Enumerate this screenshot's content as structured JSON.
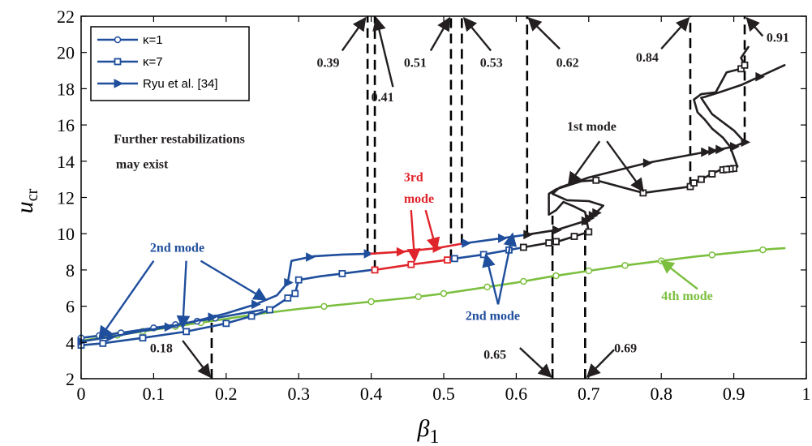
{
  "chart_data": {
    "type": "line",
    "xlabel": "β",
    "xlabel_sub": "1",
    "ylabel": "u",
    "ylabel_sub": "cr",
    "xlim": [
      0,
      1
    ],
    "ylim": [
      2,
      22
    ],
    "xticks": [
      0,
      0.1,
      0.2,
      0.3,
      0.4,
      0.5,
      0.6,
      0.7,
      0.8,
      0.9,
      1
    ],
    "xtick_labels": [
      "0",
      "0.1",
      "0.2",
      "0.3",
      "0.4",
      "0.5",
      "0.6",
      "0.7",
      "0.8",
      "0.9",
      "1"
    ],
    "yticks": [
      2,
      4,
      6,
      8,
      10,
      12,
      14,
      16,
      18,
      20,
      22
    ],
    "ytick_labels": [
      "2",
      "4",
      "6",
      "8",
      "10",
      "12",
      "14",
      "16",
      "18",
      "20",
      "22"
    ],
    "grid": false,
    "legend_position": "top-left",
    "colors": {
      "blue": "#1f4e9c",
      "red": "#e0242b",
      "black": "#231f20",
      "green": "#7cbf3f"
    },
    "legend": [
      {
        "label": "κ=1",
        "marker": "circle"
      },
      {
        "label": "κ=7",
        "marker": "square"
      },
      {
        "label": "Ryu et al. [34]",
        "marker": "triangle"
      }
    ],
    "series": [
      {
        "group": "κ=1",
        "color": "green",
        "marker": "circle",
        "x": [
          0.0,
          0.05,
          0.1,
          0.15,
          0.2,
          0.25,
          0.3,
          0.35,
          0.4,
          0.45,
          0.5,
          0.55,
          0.6,
          0.65,
          0.7,
          0.75,
          0.8,
          0.85,
          0.9,
          0.95,
          0.97
        ],
        "y": [
          4.1,
          4.4,
          4.7,
          5.0,
          5.3,
          5.6,
          5.85,
          6.05,
          6.25,
          6.45,
          6.7,
          7.0,
          7.3,
          7.65,
          7.95,
          8.25,
          8.5,
          8.75,
          8.95,
          9.15,
          9.2
        ],
        "marker_x": [
          0.0,
          0.05,
          0.085,
          0.13,
          0.165,
          0.335,
          0.4,
          0.465,
          0.5,
          0.56,
          0.61,
          0.655,
          0.7,
          0.75,
          0.8,
          0.87,
          0.94
        ]
      },
      {
        "group": "κ=1",
        "color": "blue",
        "marker": "circle",
        "x": [
          0.0,
          0.05,
          0.1,
          0.15,
          0.2,
          0.25
        ],
        "y": [
          4.25,
          4.5,
          4.8,
          5.1,
          5.45,
          5.8
        ],
        "marker_x": [
          0.0,
          0.025,
          0.055,
          0.1,
          0.13,
          0.16,
          0.185
        ]
      },
      {
        "group": "κ=7",
        "color": "blue",
        "marker": "square",
        "x": [
          0.0,
          0.03,
          0.085,
          0.145,
          0.2,
          0.235,
          0.26,
          0.285,
          0.295,
          0.3,
          0.33,
          0.36,
          0.4
        ],
        "y": [
          3.85,
          3.95,
          4.25,
          4.6,
          5.05,
          5.45,
          5.8,
          6.45,
          6.7,
          7.45,
          7.65,
          7.8,
          8.0
        ],
        "marker_x": [
          0.0,
          0.03,
          0.085,
          0.145,
          0.2,
          0.235,
          0.26,
          0.285,
          0.295,
          0.3,
          0.36
        ]
      },
      {
        "group": "κ=7",
        "color": "red",
        "marker": "square",
        "x": [
          0.405,
          0.455,
          0.505,
          0.51
        ],
        "y": [
          8.0,
          8.3,
          8.55,
          8.6
        ],
        "marker_x": [
          0.405,
          0.455,
          0.505
        ]
      },
      {
        "group": "κ=7",
        "color": "blue",
        "marker": "square",
        "x": [
          0.51,
          0.555,
          0.59,
          0.61
        ],
        "y": [
          8.6,
          8.85,
          9.1,
          9.25
        ],
        "marker_x": [
          0.515,
          0.555,
          0.59
        ]
      },
      {
        "group": "κ=7",
        "color": "black",
        "marker": "square",
        "x": [
          0.61,
          0.66,
          0.7,
          0.695,
          0.68,
          0.665,
          0.655,
          0.645,
          0.645,
          0.655,
          0.69,
          0.71,
          0.775,
          0.84,
          0.84,
          0.86,
          0.88,
          0.9,
          0.905,
          0.895,
          0.885,
          0.87,
          0.86,
          0.85,
          0.845,
          0.855,
          0.875,
          0.89,
          0.91,
          0.915,
          0.91,
          0.915,
          0.92
        ],
        "y": [
          9.25,
          9.6,
          10.1,
          11.2,
          11.5,
          11.75,
          11.3,
          11.05,
          12.2,
          12.45,
          12.9,
          12.95,
          12.25,
          12.6,
          12.7,
          13.1,
          13.5,
          13.6,
          13.7,
          14.8,
          15.3,
          15.8,
          16.3,
          16.7,
          17.4,
          17.7,
          17.8,
          18.9,
          19.1,
          19.3,
          19.7,
          20.0,
          20.3
        ],
        "marker_x": [
          0.61,
          0.655,
          0.7,
          0.68,
          0.645,
          0.655,
          0.71,
          0.775,
          0.84,
          0.855,
          0.87,
          0.9,
          0.895,
          0.885,
          0.87,
          0.855,
          0.845,
          0.89,
          0.91,
          0.915
        ]
      },
      {
        "group": "Ryu et al. [34]",
        "color": "blue",
        "marker": "triangle",
        "x": [
          0.0,
          0.04,
          0.08,
          0.12,
          0.16,
          0.2,
          0.24,
          0.27,
          0.285,
          0.29,
          0.32,
          0.36,
          0.4
        ],
        "y": [
          4.05,
          4.3,
          4.6,
          4.85,
          5.2,
          5.6,
          6.1,
          6.6,
          7.3,
          8.5,
          8.75,
          8.85,
          8.9
        ],
        "marker_x": [
          0.0,
          0.04,
          0.12,
          0.18,
          0.24,
          0.285,
          0.315,
          0.395
        ]
      },
      {
        "group": "Ryu et al. [34]",
        "color": "red",
        "marker": "triangle",
        "x": [
          0.4,
          0.44,
          0.49,
          0.525
        ],
        "y": [
          8.9,
          9.0,
          9.2,
          9.45
        ],
        "marker_x": [
          0.44,
          0.49
        ]
      },
      {
        "group": "Ryu et al. [34]",
        "color": "blue",
        "marker": "triangle",
        "x": [
          0.525,
          0.58,
          0.615
        ],
        "y": [
          9.45,
          9.75,
          9.95
        ],
        "marker_x": [
          0.53,
          0.58
        ]
      },
      {
        "group": "Ryu et al. [34]",
        "color": "black",
        "marker": "triangle",
        "x": [
          0.615,
          0.655,
          0.695,
          0.71,
          0.72,
          0.7,
          0.67,
          0.65,
          0.66,
          0.7,
          0.78,
          0.86,
          0.9,
          0.915,
          0.9,
          0.87,
          0.86,
          0.855,
          0.86,
          0.88,
          0.91,
          0.97
        ],
        "y": [
          9.95,
          10.2,
          10.7,
          11.15,
          11.55,
          11.8,
          11.85,
          12.2,
          12.55,
          13.1,
          13.9,
          14.5,
          14.8,
          15.05,
          15.7,
          16.6,
          17.2,
          17.5,
          17.55,
          17.8,
          18.2,
          19.3
        ],
        "marker_x": [
          0.615,
          0.655,
          0.695,
          0.71,
          0.7,
          0.655,
          0.705,
          0.78,
          0.86,
          0.915,
          0.9,
          0.87,
          0.86,
          0.88,
          0.9,
          0.935
        ]
      }
    ],
    "dashed_lines": [
      {
        "x": 0.18,
        "y0": 2,
        "y1": 5.25
      },
      {
        "x": 0.395,
        "y0": 8.9,
        "y1": 22
      },
      {
        "x": 0.405,
        "y0": 8.0,
        "y1": 22
      },
      {
        "x": 0.51,
        "y0": 8.6,
        "y1": 22
      },
      {
        "x": 0.525,
        "y0": 9.45,
        "y1": 22
      },
      {
        "x": 0.615,
        "y0": 9.95,
        "y1": 22
      },
      {
        "x": 0.65,
        "y0": 2,
        "y1": 11.0
      },
      {
        "x": 0.695,
        "y0": 2,
        "y1": 10.6
      },
      {
        "x": 0.84,
        "y0": 12.6,
        "y1": 22
      },
      {
        "x": 0.915,
        "y0": 15.05,
        "y1": 22
      }
    ],
    "annotations": [
      {
        "text": "0.39",
        "x": 0.325,
        "y": 19.2,
        "color": "black",
        "arrows": [
          [
            0.36,
            20.1,
            0.392,
            21.9
          ]
        ]
      },
      {
        "text": "0.41",
        "x": 0.4,
        "y": 17.3,
        "color": "black",
        "arrows": [
          [
            0.43,
            18.1,
            0.407,
            21.9
          ]
        ]
      },
      {
        "text": "0.51",
        "x": 0.445,
        "y": 19.2,
        "color": "black",
        "arrows": [
          [
            0.482,
            20.1,
            0.508,
            21.9
          ]
        ]
      },
      {
        "text": "0.53",
        "x": 0.55,
        "y": 19.2,
        "color": "black",
        "arrows": [
          [
            0.565,
            20.1,
            0.528,
            21.9
          ]
        ]
      },
      {
        "text": "0.62",
        "x": 0.655,
        "y": 19.2,
        "color": "black",
        "arrows": [
          [
            0.66,
            20.2,
            0.617,
            21.9
          ]
        ]
      },
      {
        "text": "0.84",
        "x": 0.765,
        "y": 19.5,
        "color": "black",
        "arrows": [
          [
            0.8,
            20.2,
            0.838,
            21.9
          ]
        ]
      },
      {
        "text": "0.91",
        "x": 0.945,
        "y": 20.6,
        "color": "black",
        "arrows": [
          [
            0.94,
            20.9,
            0.918,
            21.9
          ]
        ]
      },
      {
        "text": "0.18",
        "x": 0.095,
        "y": 3.45,
        "color": "black",
        "arrows": [
          [
            0.14,
            4.1,
            0.178,
            2.1
          ]
        ]
      },
      {
        "text": "0.65",
        "x": 0.555,
        "y": 3.1,
        "color": "black",
        "arrows": [
          [
            0.605,
            3.7,
            0.648,
            2.1
          ]
        ]
      },
      {
        "text": "0.69",
        "x": 0.735,
        "y": 3.45,
        "color": "black",
        "arrows": [
          [
            0.735,
            3.6,
            0.698,
            2.1
          ]
        ]
      },
      {
        "text": "1st mode",
        "x": 0.67,
        "y": 15.7,
        "color": "black",
        "arrows": [
          [
            0.715,
            15.1,
            0.672,
            12.7
          ],
          [
            0.725,
            15.1,
            0.775,
            12.35
          ]
        ]
      },
      {
        "text": "3rd",
        "x": 0.445,
        "y": 12.9,
        "color": "red",
        "arrows": []
      },
      {
        "text": "mode",
        "x": 0.445,
        "y": 11.7,
        "color": "red",
        "arrows": [
          [
            0.455,
            11.3,
            0.46,
            8.5
          ],
          [
            0.475,
            11.3,
            0.49,
            9.1
          ]
        ]
      },
      {
        "text": "2nd mode",
        "x": 0.095,
        "y": 9.0,
        "color": "blue",
        "arrows": [
          [
            0.1,
            8.5,
            0.025,
            4.2
          ],
          [
            0.145,
            8.5,
            0.14,
            4.8
          ],
          [
            0.165,
            8.5,
            0.255,
            6.35
          ]
        ]
      },
      {
        "text": "2nd mode",
        "x": 0.53,
        "y": 5.25,
        "color": "blue",
        "arrows": [
          [
            0.575,
            6.1,
            0.595,
            10.0
          ],
          [
            0.575,
            6.1,
            0.558,
            8.85
          ]
        ]
      },
      {
        "text": "4th mode",
        "x": 0.8,
        "y": 6.35,
        "color": "green",
        "arrows": [
          [
            0.85,
            6.95,
            0.8,
            8.5
          ]
        ]
      },
      {
        "text": "Further restabilizations",
        "x": 0.045,
        "y": 15.0,
        "color": "black",
        "arrows": []
      },
      {
        "text": "may exist",
        "x": 0.048,
        "y": 13.6,
        "color": "black",
        "arrows": []
      }
    ]
  }
}
